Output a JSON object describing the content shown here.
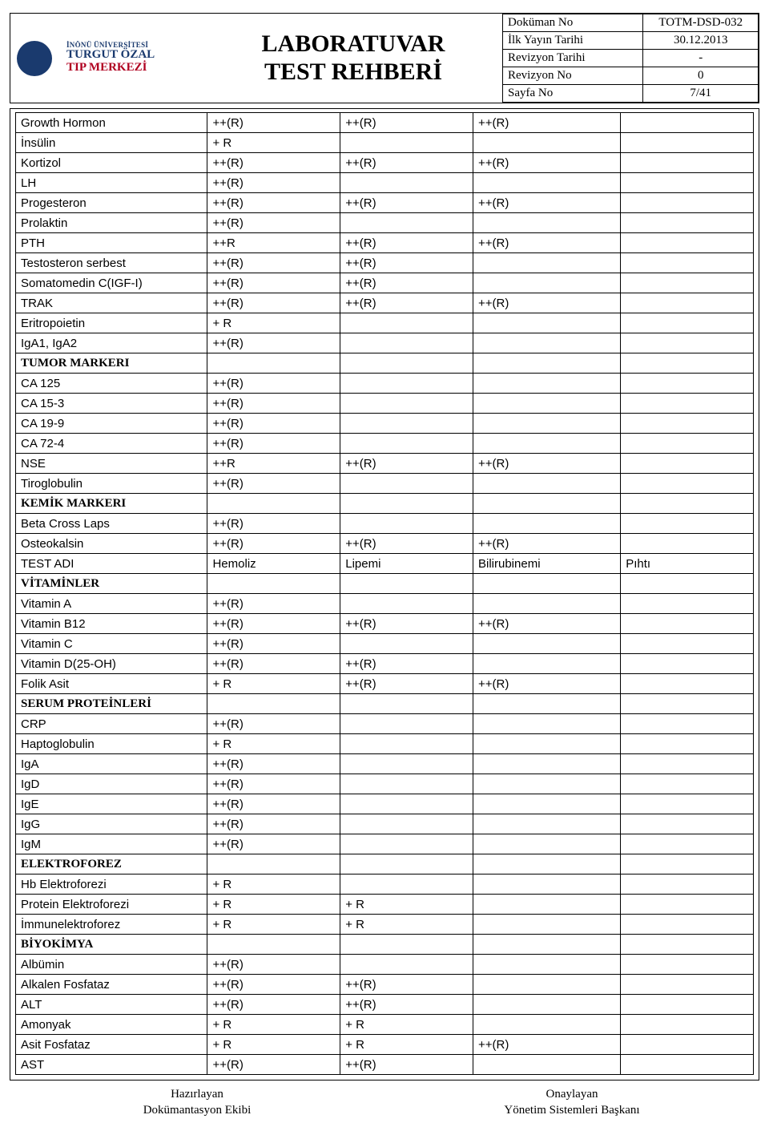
{
  "header": {
    "logo": {
      "line1": "İNÖNÜ ÜNİVERSİTESİ",
      "line2": "TURGUT ÖZAL",
      "line3": "TIP MERKEZİ"
    },
    "title_line1": "LABORATUVAR",
    "title_line2": "TEST REHBERİ",
    "meta": [
      {
        "k": "Doküman No",
        "v": "TOTM-DSD-032"
      },
      {
        "k": "İlk Yayın Tarihi",
        "v": "30.12.2013"
      },
      {
        "k": "Revizyon Tarihi",
        "v": "-"
      },
      {
        "k": "Revizyon No",
        "v": "0"
      },
      {
        "k": "Sayfa No",
        "v": "7/41"
      }
    ]
  },
  "rows": [
    {
      "c": [
        "Growth Hormon",
        "++(R)",
        "++(R)",
        "++(R)",
        ""
      ]
    },
    {
      "c": [
        "İnsülin",
        "+ R",
        "",
        "",
        ""
      ]
    },
    {
      "c": [
        "Kortizol",
        "++(R)",
        "++(R)",
        "++(R)",
        ""
      ]
    },
    {
      "c": [
        "LH",
        "++(R)",
        "",
        "",
        ""
      ]
    },
    {
      "c": [
        "Progesteron",
        "++(R)",
        "++(R)",
        "++(R)",
        ""
      ]
    },
    {
      "c": [
        "Prolaktin",
        "++(R)",
        "",
        "",
        ""
      ]
    },
    {
      "c": [
        "PTH",
        "++R",
        "++(R)",
        "++(R)",
        ""
      ]
    },
    {
      "c": [
        "Testosteron serbest",
        "++(R)",
        "++(R)",
        "",
        ""
      ]
    },
    {
      "c": [
        "Somatomedin C(IGF-I)",
        "++(R)",
        "++(R)",
        "",
        ""
      ]
    },
    {
      "c": [
        "TRAK",
        "++(R)",
        "++(R)",
        "++(R)",
        ""
      ]
    },
    {
      "c": [
        "Eritropoietin",
        "+ R",
        "",
        "",
        ""
      ]
    },
    {
      "c": [
        "IgA1, IgA2",
        "++(R)",
        "",
        "",
        ""
      ]
    },
    {
      "section": "TUMOR MARKERI"
    },
    {
      "c": [
        "CA 125",
        "++(R)",
        "",
        "",
        ""
      ]
    },
    {
      "c": [
        "CA 15-3",
        "++(R)",
        "",
        "",
        ""
      ]
    },
    {
      "c": [
        "CA 19-9",
        "++(R)",
        "",
        "",
        ""
      ]
    },
    {
      "c": [
        "CA 72-4",
        "++(R)",
        "",
        "",
        ""
      ]
    },
    {
      "c": [
        "NSE",
        "++R",
        "++(R)",
        "++(R)",
        ""
      ]
    },
    {
      "c": [
        "Tiroglobulin",
        "++(R)",
        "",
        "",
        ""
      ]
    },
    {
      "section": "KEMİK MARKERI"
    },
    {
      "c": [
        "Beta Cross Laps",
        "++(R)",
        "",
        "",
        ""
      ]
    },
    {
      "c": [
        "Osteokalsin",
        "++(R)",
        "++(R)",
        "++(R)",
        ""
      ]
    },
    {
      "c": [
        "TEST ADI",
        "Hemoliz",
        "Lipemi",
        "Bilirubinemi",
        "Pıhtı"
      ]
    },
    {
      "section": "VİTAMİNLER"
    },
    {
      "c": [
        "Vitamin A",
        "++(R)",
        "",
        "",
        ""
      ]
    },
    {
      "c": [
        "Vitamin B12",
        "++(R)",
        "++(R)",
        "++(R)",
        ""
      ]
    },
    {
      "c": [
        "Vitamin C",
        "++(R)",
        "",
        "",
        ""
      ]
    },
    {
      "c": [
        "Vitamin D(25-OH)",
        "++(R)",
        "++(R)",
        "",
        ""
      ]
    },
    {
      "c": [
        "Folik Asit",
        "+ R",
        "++(R)",
        "++(R)",
        ""
      ]
    },
    {
      "section": "SERUM PROTEİNLERİ"
    },
    {
      "c": [
        "CRP",
        "++(R)",
        "",
        "",
        ""
      ]
    },
    {
      "c": [
        "Haptoglobulin",
        "+ R",
        "",
        "",
        ""
      ]
    },
    {
      "c": [
        "IgA",
        "++(R)",
        "",
        "",
        ""
      ]
    },
    {
      "c": [
        "IgD",
        "++(R)",
        "",
        "",
        ""
      ]
    },
    {
      "c": [
        "IgE",
        "++(R)",
        "",
        "",
        ""
      ]
    },
    {
      "c": [
        "IgG",
        "++(R)",
        "",
        "",
        ""
      ]
    },
    {
      "c": [
        "IgM",
        "++(R)",
        "",
        "",
        ""
      ]
    },
    {
      "section": "ELEKTROFOREZ"
    },
    {
      "c": [
        "Hb Elektroforezi",
        "+ R",
        "",
        "",
        ""
      ]
    },
    {
      "c": [
        "Protein Elektroforezi",
        "+ R",
        "+ R",
        "",
        ""
      ]
    },
    {
      "c": [
        "İmmunelektroforez",
        "+ R",
        "+ R",
        "",
        ""
      ]
    },
    {
      "section": "BİYOKİMYA"
    },
    {
      "c": [
        "Albümin",
        "++(R)",
        "",
        "",
        ""
      ]
    },
    {
      "c": [
        "Alkalen Fosfataz",
        "++(R)",
        "++(R)",
        "",
        ""
      ]
    },
    {
      "c": [
        "ALT",
        "++(R)",
        "++(R)",
        "",
        ""
      ]
    },
    {
      "c": [
        "Amonyak",
        "+ R",
        "+ R",
        "",
        ""
      ]
    },
    {
      "c": [
        "Asit Fosfataz",
        "+ R",
        "+ R",
        "++(R)",
        ""
      ]
    },
    {
      "c": [
        "AST",
        "++(R)",
        "++(R)",
        "",
        ""
      ]
    }
  ],
  "footer": {
    "left_top": "Hazırlayan",
    "left_bot": "Dokümantasyon Ekibi",
    "right_top": "Onaylayan",
    "right_bot": "Yönetim Sistemleri Başkanı"
  },
  "colors": {
    "border": "#000000",
    "logo_blue": "#1a3a6e",
    "logo_red": "#b00020",
    "bg": "#ffffff"
  }
}
